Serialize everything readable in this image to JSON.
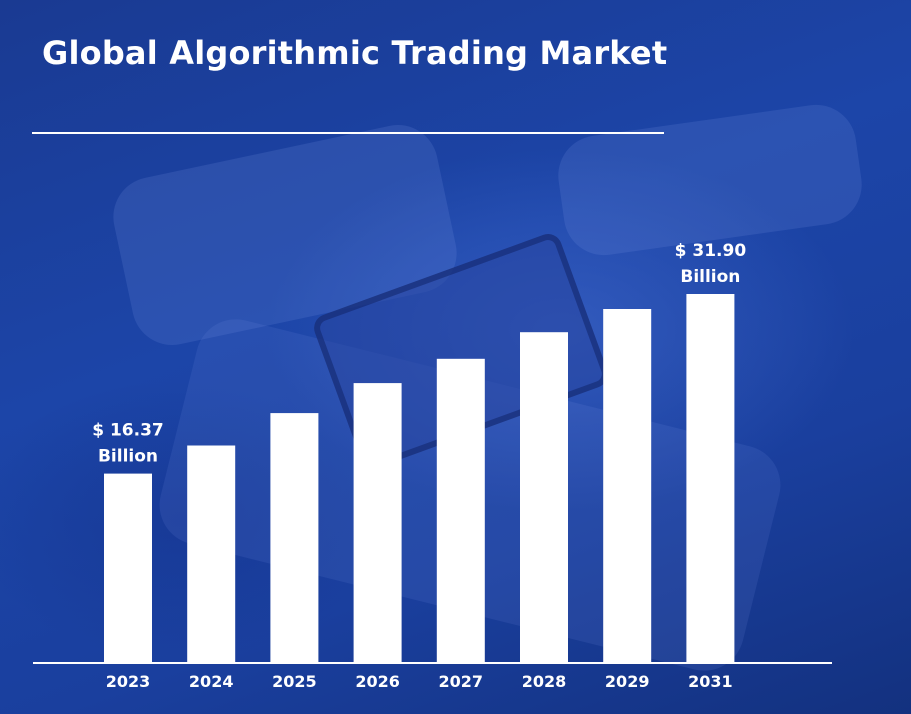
{
  "title": "Global Algorithmic Trading Market",
  "chart_data": {
    "type": "bar",
    "title": "Global Algorithmic Trading Market",
    "categories": [
      "2023",
      "2024",
      "2025",
      "2026",
      "2027",
      "2028",
      "2029",
      "2031"
    ],
    "series": [
      {
        "values": [
          16.37,
          18.8,
          21.6,
          24.2,
          26.3,
          28.6,
          30.6,
          31.9
        ]
      }
    ],
    "data_labels": [
      {
        "category": "2023",
        "lines": [
          "$ 16.37",
          "Billion"
        ]
      },
      {
        "category": "2031",
        "lines": [
          "$ 31.90",
          "Billion"
        ]
      }
    ],
    "xlabel": "",
    "ylabel": "",
    "y_axis_visible": false,
    "grid": false,
    "legend": "none",
    "colors": {
      "bar": "#ffffff",
      "axis": "#ffffff",
      "background": "#1c45a8"
    }
  }
}
